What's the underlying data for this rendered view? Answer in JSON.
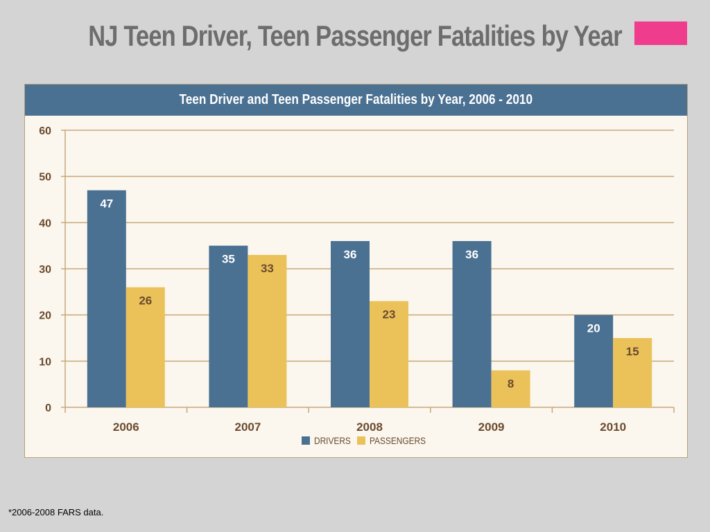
{
  "slide": {
    "title": "NJ Teen Driver, Teen Passenger Fatalities by Year",
    "footnote": "*2006-2008 FARS data."
  },
  "colors": {
    "drivers": "#4a7092",
    "passengers": "#ebc25a",
    "header_bg": "#4a7092",
    "gridline": "#c8a77a",
    "axis_text": "#6b4a2e",
    "accent_marker": "#f03c8c"
  },
  "chart_data": {
    "type": "bar",
    "title": "Teen Driver and Teen Passenger Fatalities by Year, 2006 - 2010",
    "xlabel": "",
    "ylabel": "",
    "categories": [
      "2006",
      "2007",
      "2008",
      "2009",
      "2010"
    ],
    "series": [
      {
        "name": "DRIVERS",
        "values": [
          47,
          35,
          36,
          36,
          20
        ]
      },
      {
        "name": "PASSENGERS",
        "values": [
          26,
          33,
          23,
          8,
          15
        ]
      }
    ],
    "ylim": [
      0,
      60
    ],
    "yticks": [
      0,
      10,
      20,
      30,
      40,
      50,
      60
    ],
    "grid": true,
    "legend_position": "bottom-center",
    "data_labels": true
  }
}
